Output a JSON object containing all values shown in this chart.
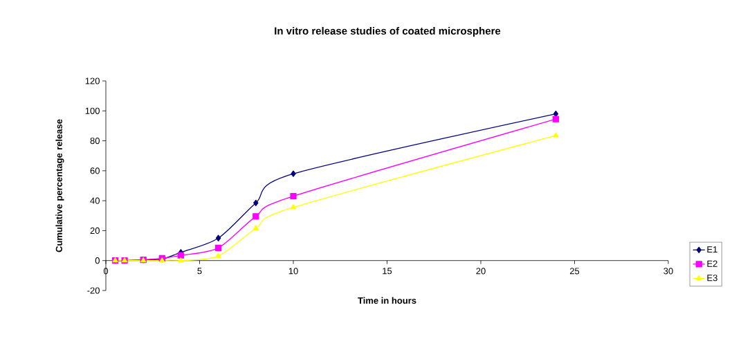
{
  "chart_data": {
    "type": "line",
    "title": "In vitro release studies of coated microsphere",
    "xlabel": "Time in hours",
    "ylabel": "Cumulative percentage release",
    "x": [
      0.5,
      1,
      2,
      3,
      4,
      6,
      8,
      10,
      24
    ],
    "series": [
      {
        "name": "E1",
        "color": "#000080",
        "marker": "diamond",
        "values": [
          0,
          0,
          0.5,
          1,
          5.5,
          15,
          38.5,
          58,
          98
        ]
      },
      {
        "name": "E2",
        "color": "#ff00ff",
        "marker": "square",
        "values": [
          0,
          0,
          0.5,
          1.5,
          3.5,
          8.5,
          29.5,
          43,
          94.5
        ]
      },
      {
        "name": "E3",
        "color": "#ffff00",
        "marker": "triangle",
        "values": [
          0,
          0,
          0,
          0,
          0,
          3,
          21.5,
          35.5,
          83.5
        ]
      }
    ],
    "xlim": [
      0,
      30
    ],
    "ylim": [
      -20,
      120
    ],
    "xticks": [
      0,
      5,
      10,
      15,
      20,
      25,
      30
    ],
    "yticks": [
      -20,
      0,
      20,
      40,
      60,
      80,
      100,
      120
    ],
    "grid": false,
    "legend": "right",
    "line_style": "solid"
  }
}
